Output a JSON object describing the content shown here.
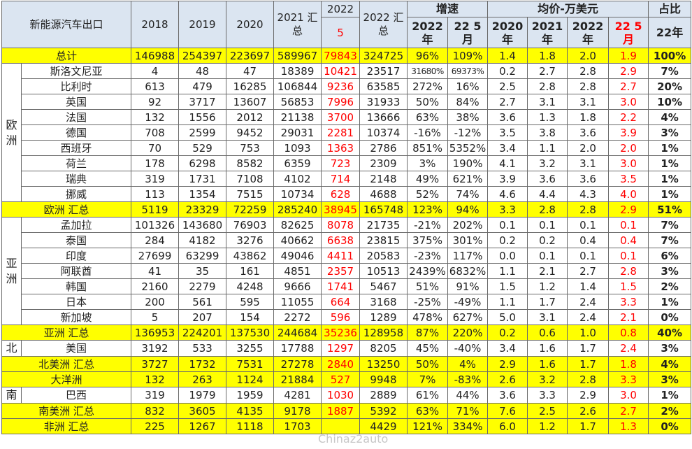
{
  "header": {
    "title": "新能源汽车出口",
    "years": [
      "2018",
      "2019",
      "2020"
    ],
    "y2021": "2021 汇总",
    "y2022_5_top": "2022",
    "y2022_5_bottom": "5",
    "y2022_total": "2022 汇总",
    "growth_group": "增速",
    "growth_sub": [
      "2022 年",
      "22 5 月"
    ],
    "price_group": "均价-万美元",
    "price_sub": [
      "2020 年",
      "2021 年",
      "2022 年",
      "22 5 月"
    ],
    "share_group": "占比",
    "share_sub": "22年"
  },
  "rows": [
    {
      "name": "总计",
      "total": true,
      "v": [
        "146988",
        "254397",
        "223697",
        "589967",
        "79843",
        "324725",
        "96%",
        "109%",
        "1.4",
        "1.8",
        "2.0",
        "1.9",
        "100%"
      ]
    },
    {
      "name": "斯洛文尼亚",
      "v": [
        "4",
        "48",
        "47",
        "18389",
        "10421",
        "23517",
        "31680%",
        "69373%",
        "0.2",
        "2.7",
        "2.8",
        "2.9",
        "7%"
      ]
    },
    {
      "name": "比利时",
      "v": [
        "613",
        "479",
        "16285",
        "106844",
        "9236",
        "63585",
        "272%",
        "16%",
        "2.5",
        "2.8",
        "2.8",
        "2.7",
        "20%"
      ]
    },
    {
      "name": "英国",
      "v": [
        "92",
        "3717",
        "13607",
        "56853",
        "7996",
        "31933",
        "50%",
        "84%",
        "2.7",
        "3.1",
        "3.1",
        "3.0",
        "10%"
      ]
    },
    {
      "name": "法国",
      "v": [
        "132",
        "1556",
        "2012",
        "21138",
        "3700",
        "13666",
        "63%",
        "38%",
        "3.6",
        "1.3",
        "1.8",
        "2.2",
        "4%"
      ]
    },
    {
      "name": "德国",
      "v": [
        "708",
        "2599",
        "9452",
        "29031",
        "2281",
        "10374",
        "-16%",
        "-12%",
        "3.5",
        "3.8",
        "3.6",
        "3.9",
        "3%"
      ]
    },
    {
      "name": "西班牙",
      "v": [
        "70",
        "529",
        "753",
        "1093",
        "1363",
        "2786",
        "851%",
        "5352%",
        "3.4",
        "1.1",
        "2.0",
        "2.0",
        "1%"
      ]
    },
    {
      "name": "荷兰",
      "v": [
        "178",
        "6298",
        "8582",
        "6359",
        "723",
        "2309",
        "3%",
        "190%",
        "4.1",
        "3.2",
        "3.1",
        "3.0",
        "1%"
      ]
    },
    {
      "name": "瑞典",
      "v": [
        "319",
        "1731",
        "7108",
        "4102",
        "714",
        "2148",
        "49%",
        "621%",
        "3.9",
        "3.6",
        "3.6",
        "3.5",
        "1%"
      ]
    },
    {
      "name": "挪威",
      "v": [
        "113",
        "1354",
        "7515",
        "10734",
        "628",
        "4688",
        "52%",
        "74%",
        "4.6",
        "4.4",
        "4.3",
        "4.0",
        "1%"
      ]
    },
    {
      "name": "欧洲 汇总",
      "total": true,
      "v": [
        "5119",
        "23329",
        "72259",
        "285240",
        "38945",
        "165748",
        "123%",
        "94%",
        "3.3",
        "2.8",
        "2.8",
        "2.9",
        "51%"
      ]
    },
    {
      "name": "孟加拉",
      "v": [
        "101326",
        "143680",
        "76903",
        "82625",
        "8078",
        "21735",
        "-21%",
        "202%",
        "0.1",
        "0.1",
        "0.1",
        "0.1",
        "7%"
      ]
    },
    {
      "name": "泰国",
      "v": [
        "284",
        "4182",
        "3276",
        "40662",
        "6638",
        "23815",
        "375%",
        "301%",
        "0.2",
        "0.2",
        "0.4",
        "0.4",
        "7%"
      ]
    },
    {
      "name": "印度",
      "v": [
        "27699",
        "63299",
        "43862",
        "49046",
        "4411",
        "20583",
        "-23%",
        "117%",
        "0.0",
        "0.1",
        "0.1",
        "0.1",
        "6%"
      ]
    },
    {
      "name": "阿联酋",
      "v": [
        "41",
        "35",
        "161",
        "4851",
        "2357",
        "10513",
        "2439%",
        "6832%",
        "1.1",
        "2.1",
        "2.7",
        "2.8",
        "3%"
      ]
    },
    {
      "name": "韩国",
      "v": [
        "2160",
        "2279",
        "4248",
        "9666",
        "1741",
        "5467",
        "51%",
        "91%",
        "1.5",
        "1.2",
        "1.4",
        "1.5",
        "2%"
      ]
    },
    {
      "name": "日本",
      "v": [
        "200",
        "561",
        "595",
        "11055",
        "664",
        "3168",
        "-25%",
        "-49%",
        "1.1",
        "1.7",
        "2.4",
        "3.3",
        "1%"
      ]
    },
    {
      "name": "新加坡",
      "v": [
        "5",
        "207",
        "154",
        "2272",
        "596",
        "1289",
        "478%",
        "627%",
        "5.0",
        "3.1",
        "2.4",
        "2.1",
        "0%"
      ]
    },
    {
      "name": "亚洲 汇总",
      "total": true,
      "v": [
        "136953",
        "224201",
        "137530",
        "244684",
        "35236",
        "128958",
        "87%",
        "220%",
        "0.2",
        "0.6",
        "1.0",
        "0.8",
        "40%"
      ]
    },
    {
      "name": "美国",
      "v": [
        "3192",
        "533",
        "3255",
        "17788",
        "1297",
        "8205",
        "45%",
        "-40%",
        "3.4",
        "1.6",
        "1.7",
        "2.4",
        "3%"
      ]
    },
    {
      "name": "北美洲 汇总",
      "total": true,
      "v": [
        "3727",
        "1732",
        "7531",
        "27278",
        "2840",
        "13250",
        "50%",
        "4%",
        "2.9",
        "1.6",
        "1.7",
        "1.8",
        "4%"
      ]
    },
    {
      "name": "大洋洲",
      "total": true,
      "v": [
        "132",
        "263",
        "1124",
        "21884",
        "527",
        "9948",
        "7%",
        "-83%",
        "2.6",
        "3.2",
        "2.8",
        "3.3",
        "3%"
      ]
    },
    {
      "name": "巴西",
      "v": [
        "319",
        "1979",
        "1959",
        "4281",
        "1030",
        "2889",
        "61%",
        "44%",
        "3.6",
        "3.3",
        "2.9",
        "3.0",
        "1%"
      ]
    },
    {
      "name": "南美洲 汇总",
      "total": true,
      "v": [
        "832",
        "3605",
        "4135",
        "9178",
        "1887",
        "5392",
        "63%",
        "71%",
        "7.6",
        "2.5",
        "2.6",
        "2.7",
        "2%"
      ]
    },
    {
      "name": "非洲 汇总",
      "total": true,
      "v": [
        "225",
        "1267",
        "1118",
        "1703",
        "",
        "4429",
        "121%",
        "334%",
        "6.0",
        "1.2",
        "1.7",
        "1.3",
        "0%"
      ]
    }
  ],
  "regions": {
    "europe": "欧洲",
    "asia": "亚洲",
    "north_america": "北",
    "south_america": "南"
  },
  "watermark": "Chinaz2auto"
}
